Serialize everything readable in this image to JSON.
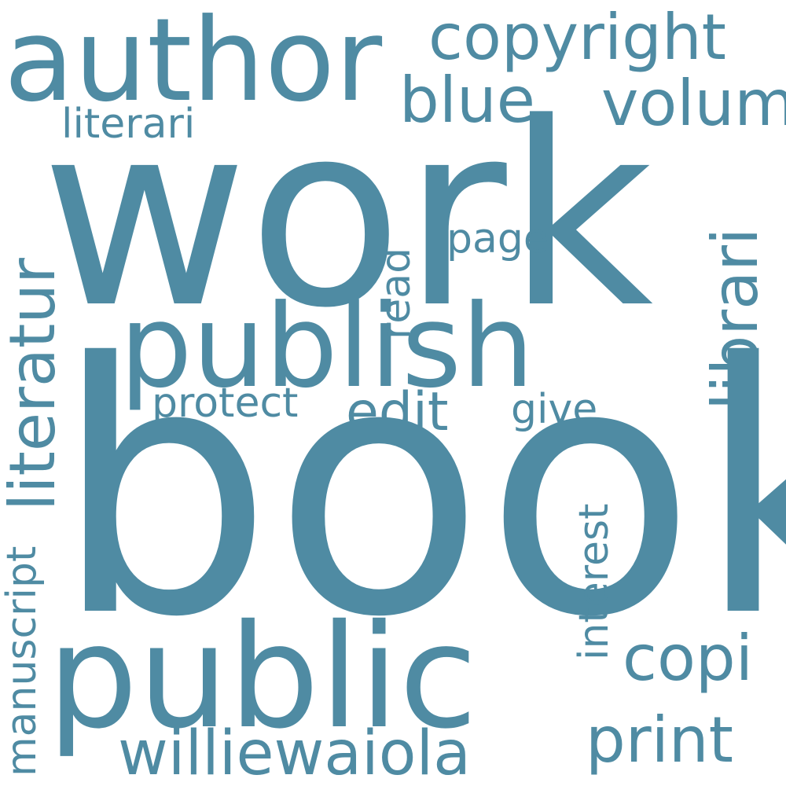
{
  "cloud": {
    "color": "#4f8ba3",
    "background": "#ffffff",
    "words": {
      "book": "book",
      "work": "work",
      "public": "public",
      "publish": "publish",
      "author": "author",
      "williewaiola": "williewaiola",
      "copyright": "copyright",
      "blue": "blue",
      "volum": "volum",
      "literari": "literari",
      "librari": "librari",
      "literatur": "literatur",
      "edit": "edit",
      "copi": "copi",
      "print": "print",
      "page": "page",
      "read": "read",
      "protect": "protect",
      "give": "give",
      "interest": "interest",
      "manuscript": "manuscript"
    }
  }
}
